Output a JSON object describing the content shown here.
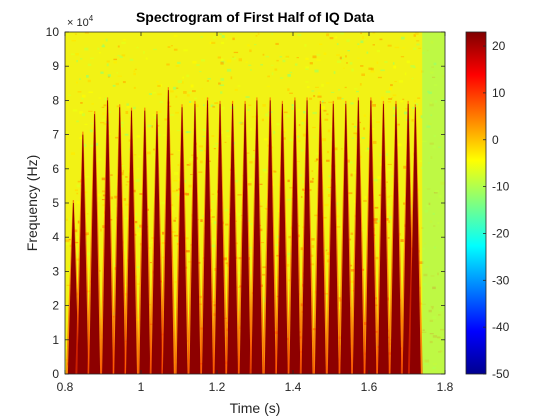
{
  "chart_data": {
    "type": "heatmap",
    "title": "Spectrogram of First Half of IQ Data",
    "xlabel": "Time (s)",
    "ylabel": "Frequency (Hz)",
    "xlim": [
      0.8,
      1.8
    ],
    "ylim": [
      0,
      100000
    ],
    "x_ticks": [
      0.8,
      1.0,
      1.2,
      1.4,
      1.6,
      1.8
    ],
    "x_tick_labels": [
      "0.8",
      "1",
      "1.2",
      "1.4",
      "1.6",
      "1.8"
    ],
    "y_ticks": [
      0,
      10000,
      20000,
      30000,
      40000,
      50000,
      60000,
      70000,
      80000,
      90000,
      100000
    ],
    "y_tick_labels": [
      "0",
      "1",
      "2",
      "3",
      "4",
      "5",
      "6",
      "7",
      "8",
      "9",
      "10"
    ],
    "y_exponent": {
      "base": "× 10",
      "power": "4"
    },
    "colorbar": {
      "range": [
        -50,
        23
      ],
      "ticks": [
        -50,
        -40,
        -30,
        -20,
        -10,
        0,
        10,
        20
      ],
      "tick_labels": [
        "-50",
        "-40",
        "-30",
        "-20",
        "-10",
        "0",
        "10",
        "20"
      ],
      "colormap": "jet"
    },
    "background_level": 0,
    "peak_level": 22,
    "chirps": [
      {
        "t": 0.822,
        "f_top": 50000
      },
      {
        "t": 0.847,
        "f_top": 70000
      },
      {
        "t": 0.878,
        "f_top": 76000
      },
      {
        "t": 0.912,
        "f_top": 80000
      },
      {
        "t": 0.944,
        "f_top": 78000
      },
      {
        "t": 0.975,
        "f_top": 77000
      },
      {
        "t": 1.01,
        "f_top": 77000
      },
      {
        "t": 1.042,
        "f_top": 76000
      },
      {
        "t": 1.072,
        "f_top": 83000
      },
      {
        "t": 1.108,
        "f_top": 78000
      },
      {
        "t": 1.142,
        "f_top": 79000
      },
      {
        "t": 1.175,
        "f_top": 80000
      },
      {
        "t": 1.208,
        "f_top": 79000
      },
      {
        "t": 1.241,
        "f_top": 79000
      },
      {
        "t": 1.274,
        "f_top": 79000
      },
      {
        "t": 1.305,
        "f_top": 80000
      },
      {
        "t": 1.34,
        "f_top": 80000
      },
      {
        "t": 1.372,
        "f_top": 79000
      },
      {
        "t": 1.405,
        "f_top": 80000
      },
      {
        "t": 1.437,
        "f_top": 80000
      },
      {
        "t": 1.472,
        "f_top": 79000
      },
      {
        "t": 1.506,
        "f_top": 79000
      },
      {
        "t": 1.539,
        "f_top": 79000
      },
      {
        "t": 1.572,
        "f_top": 80000
      },
      {
        "t": 1.605,
        "f_top": 80000
      },
      {
        "t": 1.638,
        "f_top": 79000
      },
      {
        "t": 1.671,
        "f_top": 79000
      },
      {
        "t": 1.703,
        "f_top": 79000
      },
      {
        "t": 1.722,
        "f_top": 78000
      }
    ]
  }
}
